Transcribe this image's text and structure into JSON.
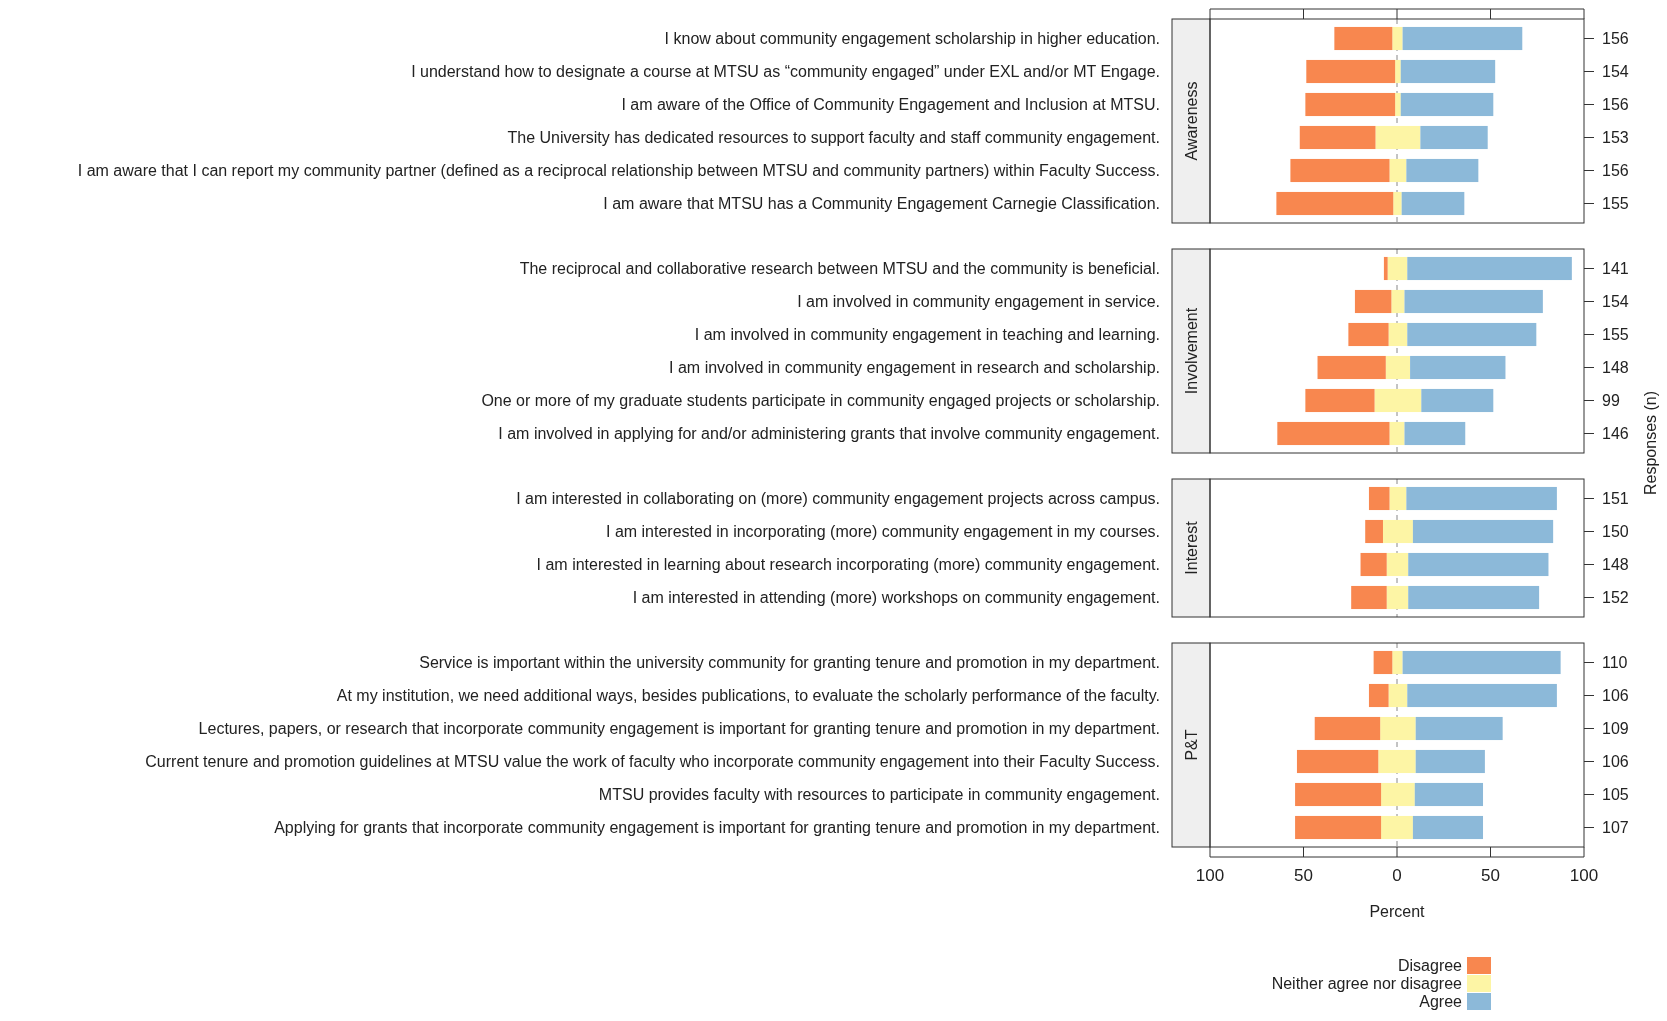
{
  "chart_data": [
    {
      "type": "bar",
      "orientation": "horizontal",
      "stacked": true,
      "ylabel": "Awareness",
      "categories": [
        "I know about community engagement scholarship in higher education.",
        "I understand how to designate a course at MTSU as “community engaged” under EXL and/or MT Engage.",
        "I am aware of the Office of Community Engagement and Inclusion at MTSU.",
        "The University has dedicated resources to support faculty and staff community engagement.",
        "I am aware that I can report my community partner (defined as a reciprocal relationship between MTSU and community partners) within Faculty Success.",
        "I am aware that MTSU has a Community Engagement Carnegie Classification."
      ],
      "y2_categories": [
        "156",
        "154",
        "156",
        "153",
        "156",
        "155"
      ],
      "series": [
        {
          "color": "#fdf5a5",
          "values": [
            -2.5,
            -1,
            -1,
            -11.5,
            -4,
            -2
          ]
        },
        {
          "color": "#f8874f",
          "values": [
            -31,
            -47.5,
            -48,
            -40.5,
            -53,
            -62.5
          ]
        },
        {
          "color": "#fdf5a5",
          "values": [
            3,
            2,
            2,
            12.5,
            5,
            2.5
          ]
        },
        {
          "color": "#8cb9d9",
          "values": [
            64,
            50.5,
            49.5,
            36,
            38.5,
            33.5
          ]
        }
      ],
      "xlim": [
        -100,
        100
      ],
      "xticks": [
        {
          "value": -100,
          "label": null
        },
        {
          "value": -50,
          "label": null
        },
        {
          "value": 0,
          "label": null
        },
        {
          "value": 50,
          "label": null
        },
        {
          "value": 100,
          "label": null
        }
      ],
      "ref_lines": [
        {
          "axis": "x",
          "value": 0,
          "line_style": "dashed",
          "color": "#888888"
        }
      ],
      "tick_labels": "y"
    },
    {
      "type": "bar",
      "orientation": "horizontal",
      "stacked": true,
      "ylabel": "Involvement",
      "y2label": "Responses (n)",
      "categories": [
        "The reciprocal and collaborative research between MTSU and the community is beneficial.",
        "I am involved in community engagement in service.",
        "I am involved in community engagement in teaching and learning.",
        "I am involved in community engagement in research and scholarship.",
        "One or more of my graduate students participate in community engaged projects or scholarship.",
        "I am involved in applying for and/or administering grants that involve community engagement."
      ],
      "y2_categories": [
        "141",
        "154",
        "155",
        "148",
        "99",
        "146"
      ],
      "series": [
        {
          "color": "#fdf5a5",
          "values": [
            -5,
            -3,
            -4.5,
            -6,
            -12,
            -4
          ]
        },
        {
          "color": "#f8874f",
          "values": [
            -2,
            -19.5,
            -21.5,
            -36.5,
            -37,
            -60
          ]
        },
        {
          "color": "#fdf5a5",
          "values": [
            5.5,
            4,
            5.5,
            7,
            13,
            4
          ]
        },
        {
          "color": "#8cb9d9",
          "values": [
            88,
            74,
            69,
            51,
            38.5,
            32.5
          ]
        }
      ],
      "xlim": [
        -100,
        100
      ],
      "ref_lines": [
        {
          "axis": "x",
          "value": 0,
          "line_style": "dashed",
          "color": "#888888"
        }
      ],
      "tick_labels": "y"
    },
    {
      "type": "bar",
      "orientation": "horizontal",
      "stacked": true,
      "ylabel": "Interest",
      "categories": [
        "I am interested in collaborating on (more) community engagement projects  across campus.",
        "I am interested in incorporating (more) community engagement in my courses.",
        "I am interested in learning about research incorporating (more) community engagement.",
        "I am interested in attending (more) workshops on community engagement."
      ],
      "y2_categories": [
        "151",
        "150",
        "148",
        "152"
      ],
      "series": [
        {
          "color": "#fdf5a5",
          "values": [
            -4,
            -7.5,
            -5.5,
            -5.5
          ]
        },
        {
          "color": "#f8874f",
          "values": [
            -11,
            -9.5,
            -14,
            -19
          ]
        },
        {
          "color": "#fdf5a5",
          "values": [
            5,
            8.5,
            6,
            6
          ]
        },
        {
          "color": "#8cb9d9",
          "values": [
            80.5,
            75,
            75,
            70
          ]
        }
      ],
      "xlim": [
        -100,
        100
      ],
      "ref_lines": [
        {
          "axis": "x",
          "value": 0,
          "line_style": "dashed",
          "color": "#888888"
        }
      ],
      "tick_labels": "y"
    },
    {
      "type": "bar",
      "orientation": "horizontal",
      "stacked": true,
      "ylabel": "P&T",
      "xlabel": "Percent",
      "categories": [
        "Service is important within the university community for granting tenure and promotion in my department.",
        "At my institution, we need additional ways, besides publications, to evaluate the scholarly performance of the faculty.",
        "Lectures, papers, or research that incorporate community engagement is important for granting tenure and promotion in my department.",
        "Current tenure and promotion guidelines at MTSU value the work of faculty who incorporate community engagement into their Faculty Success.",
        "MTSU provides faculty with resources to participate in community engagement.",
        "Applying for grants that incorporate community engagement is important for granting tenure and promotion in my department."
      ],
      "y2_categories": [
        "110",
        "106",
        "109",
        "106",
        "105",
        "107"
      ],
      "series": [
        {
          "color": "#fdf5a5",
          "values": [
            -2.5,
            -4.5,
            -9,
            -10,
            -8.5,
            -8.5
          ]
        },
        {
          "name": "Disagree",
          "color": "#f8874f",
          "values": [
            -10,
            -10.5,
            -35,
            -43.5,
            -46,
            -46
          ]
        },
        {
          "name": "Neither agree nor disagree",
          "color": "#fdf5a5",
          "values": [
            3,
            5.5,
            10,
            10,
            9.5,
            8.5
          ]
        },
        {
          "name": "Agree",
          "color": "#8cb9d9",
          "values": [
            84.5,
            80,
            46.5,
            37,
            36.5,
            37.5
          ]
        }
      ],
      "xlim": [
        -100,
        100
      ],
      "xticks": [
        {
          "value": -100,
          "label": "100"
        },
        {
          "value": -50,
          "label": "50"
        },
        0,
        50,
        100
      ],
      "ref_lines": [
        {
          "axis": "x",
          "value": 0,
          "line_style": "dashed",
          "color": "#888888"
        }
      ],
      "legend": "bottom"
    }
  ]
}
